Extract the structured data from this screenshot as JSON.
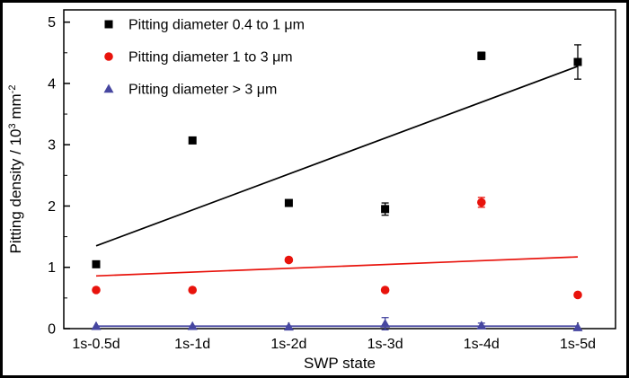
{
  "figure": {
    "background": "#ffffff",
    "border_color": "#000000"
  },
  "chart_data": {
    "type": "scatter",
    "title": "",
    "xlabel": "SWP state",
    "ylabel": "Pitting density / 10³ mm⁻²",
    "ylabel_parts": [
      {
        "text": "Pitting density / 10"
      },
      {
        "text": "3",
        "sup": true
      },
      {
        "text": " mm"
      },
      {
        "text": "-2",
        "sup": true
      }
    ],
    "categories": [
      "1s-0.5d",
      "1s-1d",
      "1s-2d",
      "1s-3d",
      "1s-4d",
      "1s-5d"
    ],
    "ylim": [
      0,
      5.2
    ],
    "yticks": [
      0,
      1,
      2,
      3,
      4,
      5
    ],
    "minor_tick_step": 0.5,
    "grid": false,
    "legend_position": "top-left",
    "series": [
      {
        "name": "Pitting diameter 0.4 to 1 μm",
        "marker": "square",
        "color": "#000000",
        "values": [
          1.05,
          3.07,
          2.05,
          1.95,
          4.45,
          4.35
        ],
        "errors": [
          0,
          0,
          0,
          0.1,
          0.06,
          0.28
        ],
        "trendline": {
          "x": [
            0,
            5
          ],
          "y": [
            1.35,
            4.28
          ]
        }
      },
      {
        "name": "Pitting diameter 1 to 3 μm",
        "marker": "circle",
        "color": "#e8130c",
        "values": [
          0.63,
          0.63,
          1.12,
          0.63,
          2.06,
          0.55
        ],
        "errors": [
          0,
          0,
          0,
          0,
          0.08,
          0
        ],
        "trendline": {
          "x": [
            0,
            5
          ],
          "y": [
            0.86,
            1.17
          ]
        }
      },
      {
        "name": "Pitting diameter > 3 μm",
        "marker": "triangle",
        "color": "#4646a0",
        "values": [
          0.04,
          0.04,
          0.03,
          0.08,
          0.05,
          0.02
        ],
        "errors": [
          0,
          0,
          0,
          0.1,
          0.04,
          0
        ],
        "trendline": {
          "x": [
            0,
            5
          ],
          "y": [
            0.04,
            0.04
          ]
        }
      }
    ]
  }
}
